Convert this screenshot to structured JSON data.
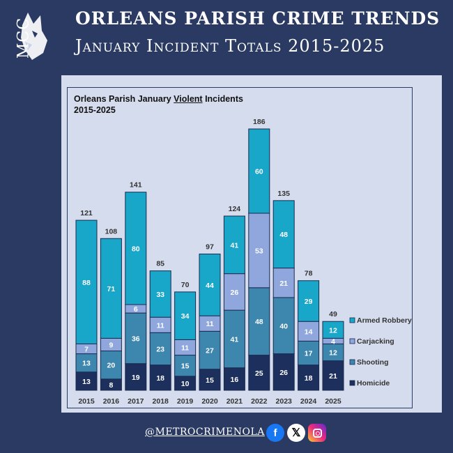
{
  "header": {
    "logo_text": "MCC",
    "title_line1": "Orleans Parish Crime Trends",
    "title_line2": "January Incident Totals 2015-2025"
  },
  "footer": {
    "handle": "@METROCRIMENOLA",
    "social_icons": [
      "facebook-icon",
      "x-icon",
      "instagram-icon"
    ]
  },
  "chart_data": {
    "type": "bar",
    "stacked": true,
    "title_pre": "Orleans Parish January ",
    "title_emph": "Violent",
    "title_post": " Incidents",
    "subtitle": "2015-2025",
    "categories": [
      "2015",
      "2016",
      "2017",
      "2018",
      "2019",
      "2020",
      "2021",
      "2022",
      "2023",
      "2024",
      "2025"
    ],
    "totals": [
      121,
      108,
      141,
      85,
      70,
      97,
      124,
      186,
      135,
      78,
      49
    ],
    "series": [
      {
        "name": "Homicide",
        "color": "#1d2f5c",
        "values": [
          13,
          8,
          19,
          18,
          10,
          15,
          16,
          25,
          26,
          18,
          21
        ]
      },
      {
        "name": "Shooting",
        "color": "#3d86ad",
        "values": [
          13,
          20,
          36,
          23,
          15,
          27,
          41,
          48,
          40,
          17,
          12
        ]
      },
      {
        "name": "Carjacking",
        "color": "#8fa7dd",
        "values": [
          7,
          9,
          6,
          11,
          11,
          11,
          26,
          53,
          21,
          14,
          4
        ]
      },
      {
        "name": "Armed Robbery",
        "color": "#18a6c9",
        "values": [
          88,
          71,
          80,
          33,
          34,
          44,
          41,
          60,
          48,
          29,
          12
        ]
      }
    ],
    "legend_order": [
      "Armed Robbery",
      "Carjacking",
      "Shooting",
      "Homicide"
    ],
    "ylim": [
      0,
      186
    ],
    "legend_position": "right",
    "grid": false
  }
}
